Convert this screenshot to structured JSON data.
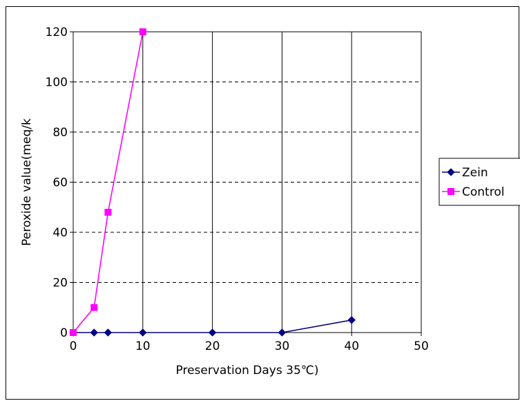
{
  "chart_data": {
    "type": "line",
    "title": "",
    "xlabel": "Preservation Days 35℃)",
    "ylabel": "Peroxide value(meq/k",
    "xlim": [
      0,
      50
    ],
    "ylim": [
      0,
      120
    ],
    "x_ticks": [
      0,
      10,
      20,
      30,
      40,
      50
    ],
    "y_ticks": [
      0,
      20,
      40,
      60,
      80,
      100,
      120
    ],
    "grid": {
      "vertical": "solid",
      "horizontal": "dashed"
    },
    "legend_position": "right",
    "series": [
      {
        "name": "Zein",
        "color": "#000080",
        "marker": "diamond",
        "points": [
          [
            0,
            0
          ],
          [
            3,
            0
          ],
          [
            5,
            0
          ],
          [
            10,
            0
          ],
          [
            20,
            0
          ],
          [
            30,
            0
          ],
          [
            40,
            5
          ]
        ]
      },
      {
        "name": "Control",
        "color": "#ff00ff",
        "marker": "square",
        "points": [
          [
            0,
            0
          ],
          [
            3,
            10
          ],
          [
            5,
            48
          ],
          [
            10,
            120
          ]
        ]
      }
    ]
  }
}
